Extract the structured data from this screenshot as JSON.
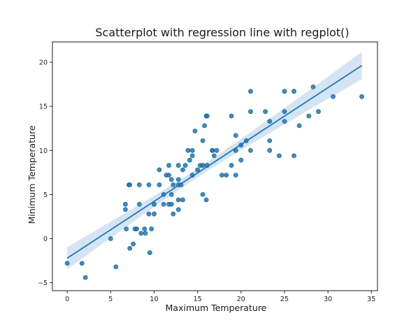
{
  "chart_data": {
    "type": "scatter",
    "title": "Scatterplot with regression line with regplot()",
    "xlabel": "Maximum Temperature",
    "ylabel": "Minimum Temperature",
    "xlim": [
      -1.7,
      35.7
    ],
    "ylim": [
      -5.9,
      22.3
    ],
    "xticks": [
      0,
      5,
      10,
      15,
      20,
      25,
      30,
      35
    ],
    "yticks": [
      -5,
      0,
      5,
      10,
      15,
      20
    ],
    "grid": false,
    "colors": {
      "points": "#1f77b4",
      "point_edge": "#1b5f8c",
      "line": "#1f77b4",
      "band": "#c6dbef"
    },
    "series": [
      {
        "x": [
          0,
          1.7,
          2.1,
          5.0,
          5.6,
          6.7,
          6.7,
          6.8,
          7.1,
          7.2,
          7.2,
          7.6,
          7.8,
          8.0,
          8.3,
          8.3,
          8.5,
          8.9,
          9.0,
          9.4,
          9.4,
          9.5,
          9.7,
          10.0,
          10.0,
          10.6,
          10.6,
          11.1,
          11.1,
          11.4,
          11.7,
          11.7,
          11.7,
          12.0,
          12.0,
          12.0,
          12.2,
          12.2,
          12.8,
          12.8,
          12.8,
          12.8,
          12.8,
          13.1,
          13.3,
          13.3,
          13.6,
          13.9,
          14.1,
          14.4,
          14.4,
          14.4,
          14.7,
          15.0,
          15.3,
          15.6,
          15.6,
          15.6,
          15.8,
          16.0,
          16.0,
          16.1,
          16.1,
          16.7,
          16.7,
          16.9,
          17.2,
          17.8,
          18.3,
          18.9,
          18.9,
          19.4,
          19.4,
          19.4,
          20.0,
          20.0,
          20.6,
          21.1,
          21.1,
          21.1,
          22.8,
          23.3,
          23.3,
          23.3,
          24.4,
          25.0,
          25.0,
          25.0,
          26.1,
          26.1,
          26.7,
          27.8,
          28.3,
          28.9,
          30.6,
          33.9
        ],
        "y": [
          -2.8,
          -2.8,
          -4.4,
          0,
          -3.2,
          3.9,
          3.3,
          1.1,
          6.1,
          6.1,
          -1.1,
          -0.6,
          1.1,
          1.1,
          3.9,
          6.1,
          0.6,
          1.1,
          0.6,
          2.8,
          6.1,
          -1.6,
          1.1,
          2.8,
          3.9,
          6.1,
          7.8,
          5.0,
          3.9,
          7.2,
          8.3,
          7.2,
          3.9,
          3.9,
          5.0,
          6.7,
          6.1,
          2.8,
          6.1,
          6.7,
          3.3,
          4.4,
          8.3,
          6.1,
          7.8,
          4.4,
          8.3,
          10.0,
          8.9,
          7.2,
          10.0,
          9.4,
          12.2,
          7.8,
          8.3,
          5.0,
          8.3,
          11.1,
          12.8,
          13.9,
          4.4,
          8.3,
          13.9,
          10.0,
          10.0,
          9.4,
          10.0,
          7.2,
          7.2,
          8.3,
          13.9,
          10.0,
          11.7,
          7.2,
          8.9,
          10.6,
          11.1,
          10.0,
          14.4,
          16.7,
          14.4,
          13.3,
          11.1,
          10.0,
          9.4,
          13.3,
          14.4,
          16.7,
          16.7,
          9.4,
          12.8,
          13.9,
          17.2,
          14.4,
          16.1,
          16.1
        ]
      }
    ],
    "regression": {
      "x_range": [
        0,
        33.9
      ]
    }
  }
}
